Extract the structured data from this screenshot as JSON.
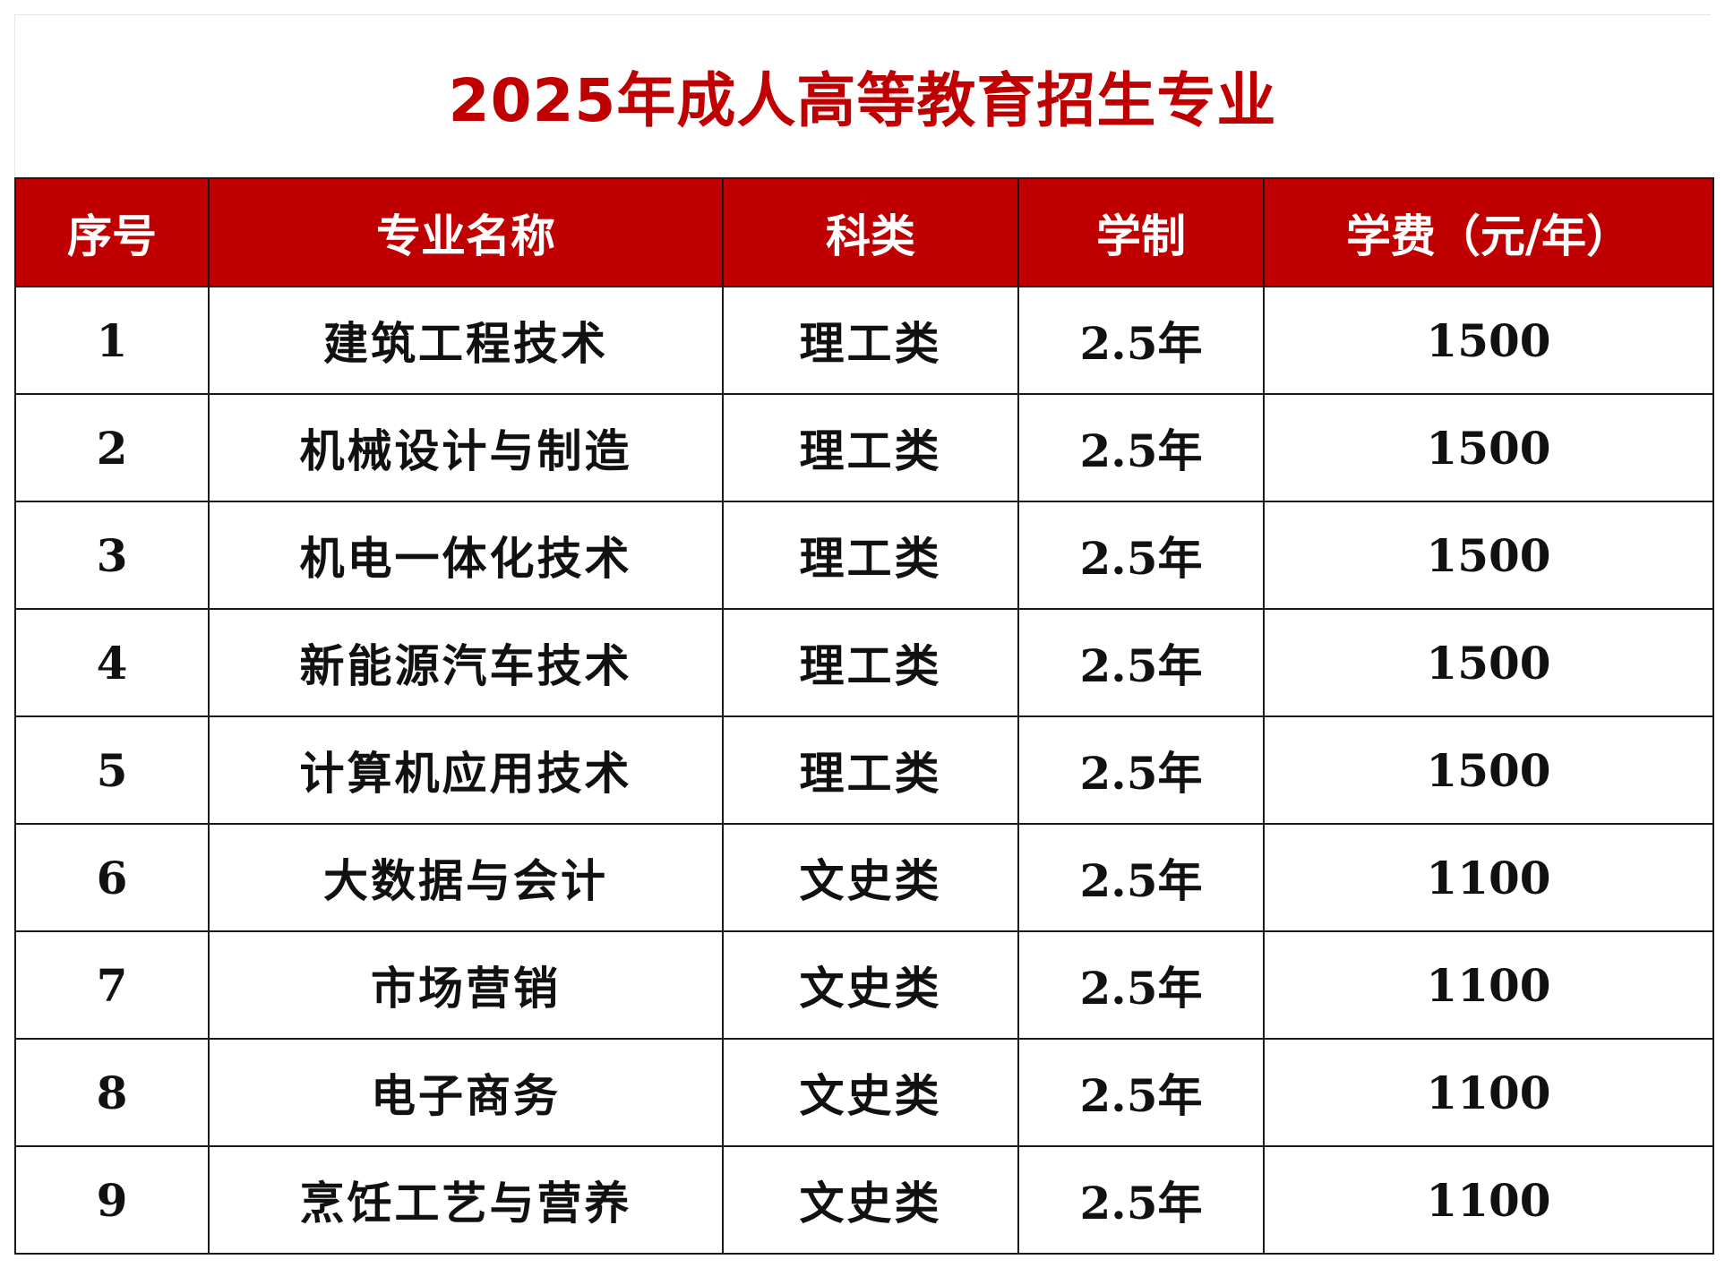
{
  "title": "2025年成人高等教育招生专业",
  "table": {
    "headers": [
      "序号",
      "专业名称",
      "科类",
      "学制",
      "学费（元/年）"
    ],
    "rows": [
      {
        "no": "1",
        "name": "建筑工程技术",
        "category": "理工类",
        "duration": "2.5年",
        "fee": "1500"
      },
      {
        "no": "2",
        "name": "机械设计与制造",
        "category": "理工类",
        "duration": "2.5年",
        "fee": "1500"
      },
      {
        "no": "3",
        "name": "机电一体化技术",
        "category": "理工类",
        "duration": "2.5年",
        "fee": "1500"
      },
      {
        "no": "4",
        "name": "新能源汽车技术",
        "category": "理工类",
        "duration": "2.5年",
        "fee": "1500"
      },
      {
        "no": "5",
        "name": "计算机应用技术",
        "category": "理工类",
        "duration": "2.5年",
        "fee": "1500"
      },
      {
        "no": "6",
        "name": "大数据与会计",
        "category": "文史类",
        "duration": "2.5年",
        "fee": "1100"
      },
      {
        "no": "7",
        "name": "市场营销",
        "category": "文史类",
        "duration": "2.5年",
        "fee": "1100"
      },
      {
        "no": "8",
        "name": "电子商务",
        "category": "文史类",
        "duration": "2.5年",
        "fee": "1100"
      },
      {
        "no": "9",
        "name": "烹饪工艺与营养",
        "category": "文史类",
        "duration": "2.5年",
        "fee": "1100"
      }
    ]
  },
  "colors": {
    "accent": "#c00000",
    "header_text": "#ffffff",
    "grid": "#1a1a1a"
  }
}
